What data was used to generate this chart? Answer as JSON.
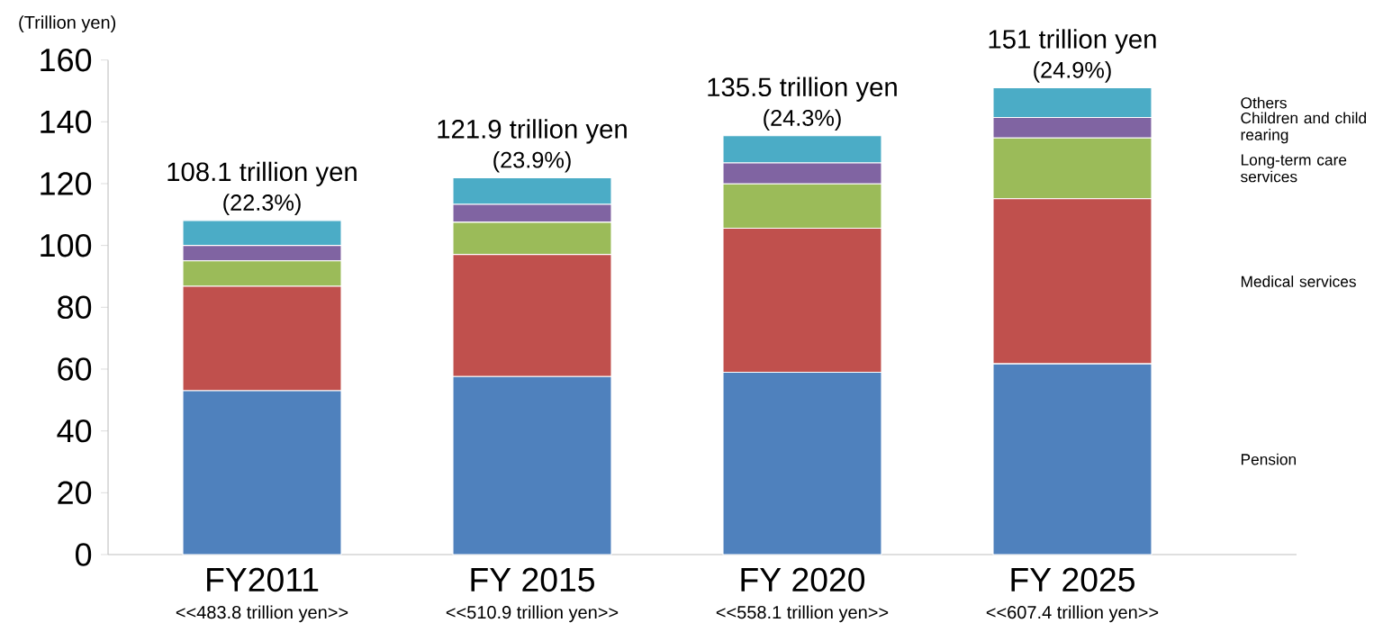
{
  "chart_data": {
    "type": "bar",
    "stacked": true,
    "ylabel": "(Trillion yen)",
    "categories": [
      "FY2011",
      "FY 2015",
      "FY 2020",
      "FY 2025"
    ],
    "series": [
      {
        "name": "Pension",
        "color": "#4f81bd",
        "values": [
          53.0,
          57.6,
          59.0,
          61.7
        ]
      },
      {
        "name": "Medical services",
        "color": "#c0504d",
        "values": [
          33.8,
          39.5,
          46.6,
          53.4
        ]
      },
      {
        "name": "Long-term care services",
        "color": "#9bbb59",
        "values": [
          8.2,
          10.4,
          14.3,
          19.7
        ]
      },
      {
        "name": "Children and child rearing",
        "color": "#8064a2",
        "values": [
          5.0,
          5.8,
          6.8,
          6.6
        ]
      },
      {
        "name": "Others",
        "color": "#4bacc6",
        "values": [
          8.1,
          8.6,
          8.8,
          9.6
        ]
      }
    ],
    "totals": [
      "108.1 trillion yen",
      "121.9 trillion yen",
      "135.5 trillion yen",
      "151 trillion yen"
    ],
    "annotations": [
      {
        "text": "(22.3%)",
        "x": "FY2011",
        "y": 108.1
      },
      {
        "text": "(23.9%)",
        "x": "FY 2015",
        "y": 121.9
      },
      {
        "text": "(24.3%)",
        "x": "FY 2020",
        "y": 135.5
      },
      {
        "text": "(24.9%)",
        "x": "FY 2025",
        "y": 151
      },
      "<<483.8 trillion yen>>",
      "<<510.9 trillion yen>>",
      "<<558.1 trillion yen>>",
      "<<607.4 trillion yen>>"
    ],
    "ylim": [
      0,
      160
    ],
    "yticks": [
      0,
      20,
      40,
      60,
      80,
      100,
      120,
      140,
      160
    ],
    "legend": false
  }
}
